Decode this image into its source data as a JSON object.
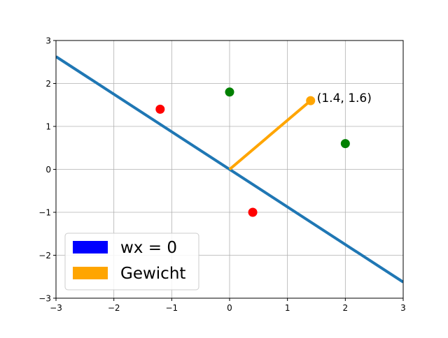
{
  "chart_data": {
    "type": "scatter",
    "xlim": [
      -3,
      3
    ],
    "ylim": [
      -3,
      3
    ],
    "x_ticks": [
      -3,
      -2,
      -1,
      0,
      1,
      2,
      3
    ],
    "y_ticks": [
      -3,
      -2,
      -1,
      0,
      1,
      2,
      3
    ],
    "x_tick_labels": [
      "−3",
      "−2",
      "−1",
      "0",
      "1",
      "2",
      "3"
    ],
    "y_tick_labels": [
      "−3",
      "−2",
      "−1",
      "0",
      "1",
      "2",
      "3"
    ],
    "grid": true,
    "legend_position": "lower-left",
    "series": [
      {
        "name": "wx = 0",
        "kind": "line",
        "color": "#1f77b4",
        "legend_color": "#0000ff",
        "points": [
          [
            -3,
            2.625
          ],
          [
            3,
            -2.625
          ]
        ]
      },
      {
        "name": "Gewicht",
        "kind": "line",
        "color": "#ffa500",
        "legend_color": "#ffa500",
        "points": [
          [
            0,
            0
          ],
          [
            1.4,
            1.6
          ]
        ],
        "end_marker": true
      }
    ],
    "points_red": [
      [
        -1.2,
        1.4
      ],
      [
        0.4,
        -1.0
      ]
    ],
    "points_green": [
      [
        0.0,
        1.8
      ],
      [
        2.0,
        0.6
      ]
    ],
    "colors": {
      "red": "#ff0000",
      "green": "#008000"
    },
    "annotations": [
      {
        "text": "(1.4, 1.6)",
        "x": 1.4,
        "y": 1.6
      }
    ]
  }
}
